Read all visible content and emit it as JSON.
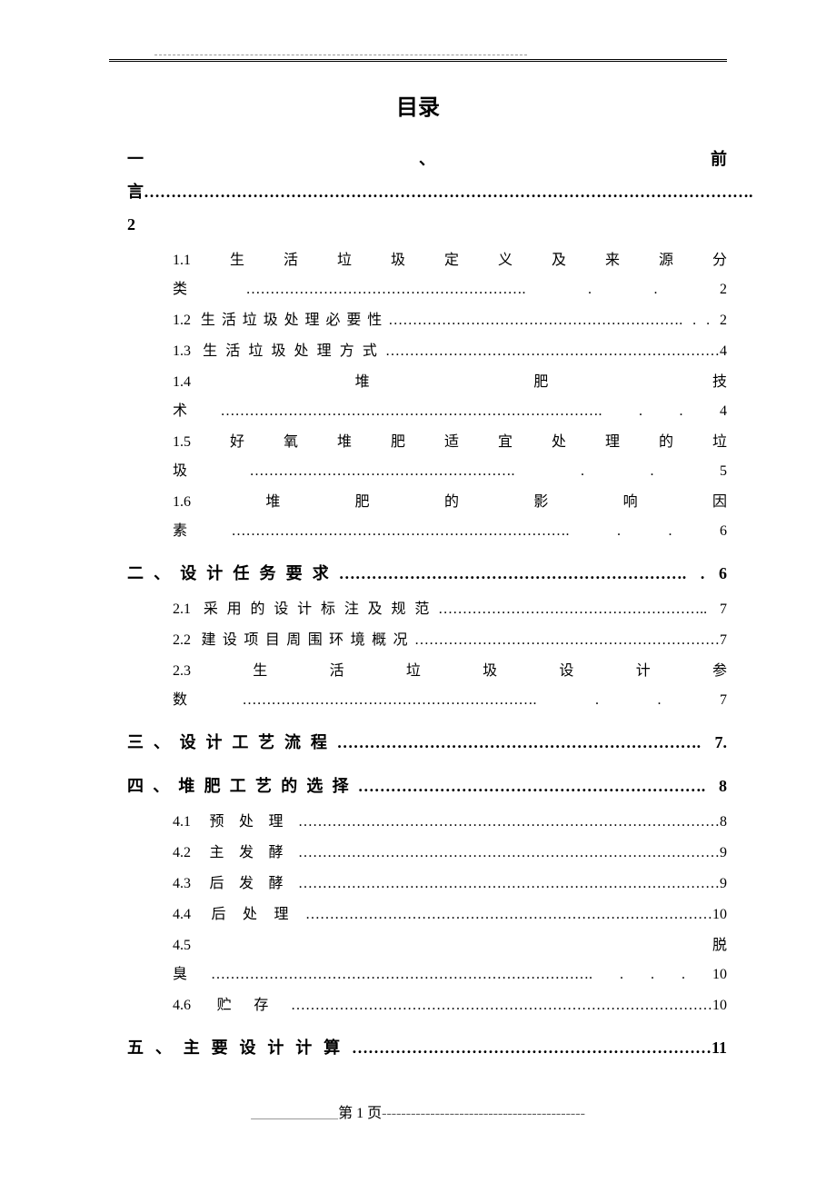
{
  "title": "目录",
  "entries": [
    {
      "level": 1,
      "text": "一、前言…………………………………………………………………………………………………. 2",
      "justify": true
    },
    {
      "level": 2,
      "text": "1.1　生　活　垃　圾　定　义　及　来　源　分类…………………………………………………. . . 2",
      "justify": true
    },
    {
      "level": 2,
      "text": "1.2 生活垃圾处理必要性……………………………………………………. . . 2",
      "justify": true
    },
    {
      "level": 2,
      "text": "1.3 生活垃圾处理方式……………………………………………………………4",
      "justify": true
    },
    {
      "level": 2,
      "text": "1.4　　　　　　　堆　　　　　　　肥　　　　　　　技术……………………………………………………………………. . . 4",
      "justify": true
    },
    {
      "level": 2,
      "text": "1.5　好　氧　堆　肥　适　宜　处　理　的　垃圾………………………………………………. . . 5",
      "justify": true
    },
    {
      "level": 2,
      "text": "1.6　　堆　　肥　　的　　影　　响　　因素……………………………………………………………. . . 6",
      "justify": true
    },
    {
      "level": 1,
      "text": "二、设计任务要求………………………………………………………. . 6",
      "justify": true
    },
    {
      "level": 2,
      "text": "2.1 采用的设计标注及规范……………………………………………….. 7",
      "justify": true
    },
    {
      "level": 2,
      "text": "2.2 建设项目周围环境概况………………………………………………………7",
      "justify": true
    },
    {
      "level": 2,
      "text": "2.3　　生　　活　　垃　　圾　　设　　计　　参数……………………………………………………. . . 7",
      "justify": true
    },
    {
      "level": 1,
      "text": "三、设计工艺流程…………………………………………………………. 7.",
      "justify": true
    },
    {
      "level": 1,
      "text": "四、堆肥工艺的选择………………………………………………………. 8",
      "justify": true
    },
    {
      "level": 2,
      "text": "4.1 预处理……………………………………………………………………………8",
      "justify": true
    },
    {
      "level": 2,
      "text": "4.2 主发酵……………………………………………………………………………9",
      "justify": true
    },
    {
      "level": 2,
      "text": "4.3 后发酵……………………………………………………………………………9",
      "justify": true
    },
    {
      "level": 2,
      "text": "4.4 后处理…………………………………………………………………………10",
      "justify": true
    },
    {
      "level": 2,
      "text": "4.5　　　　　　　　　　　　　　　　　　　　　　　脱臭……………………………………………………………………. . . . 10",
      "justify": true
    },
    {
      "level": 2,
      "text": "4.6 贮存……………………………………………………………………………10",
      "justify": true
    },
    {
      "level": 1,
      "text": "五、主要设计计算…………………………………………………………11",
      "justify": true
    }
  ],
  "footer": {
    "page_label": "第 1 页",
    "dashes": "------------------------------------------"
  },
  "colors": {
    "background": "#ffffff",
    "text": "#000000",
    "dash": "#666666"
  },
  "typography": {
    "title_fontsize": 24,
    "entry_fontsize": 17,
    "font_family": "SimSun"
  }
}
